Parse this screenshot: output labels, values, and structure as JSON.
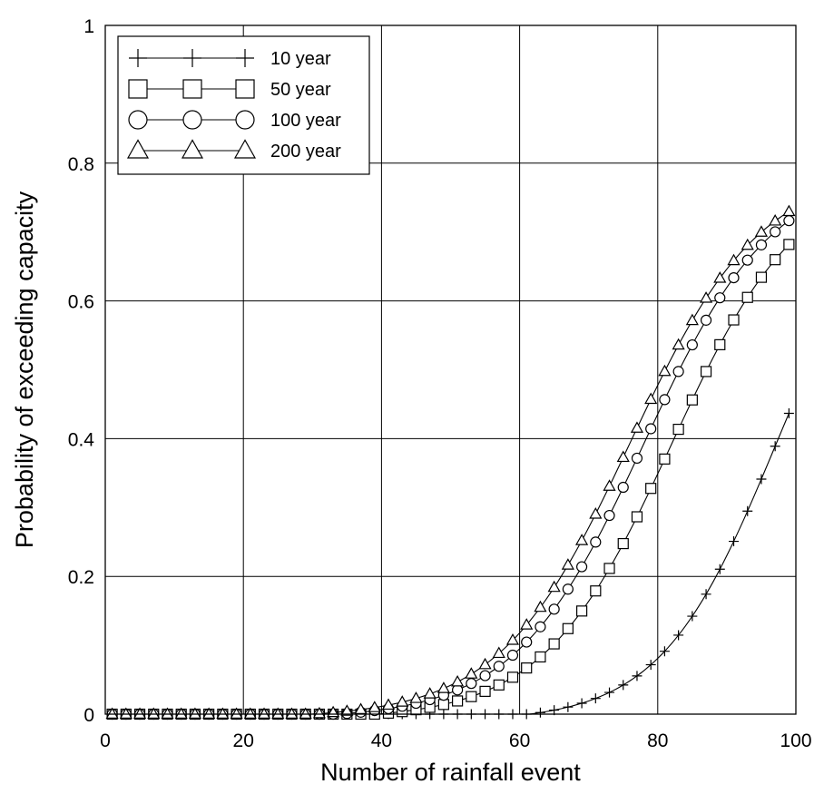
{
  "chart_data": {
    "type": "line",
    "title": "",
    "xlabel": "Number of rainfall event",
    "ylabel": "Probability of exceeding capacity",
    "xlim": [
      0,
      100
    ],
    "ylim": [
      0,
      1
    ],
    "x_ticks": [
      0,
      20,
      40,
      60,
      80,
      100
    ],
    "y_ticks": [
      0,
      0.2,
      0.4,
      0.6,
      0.8,
      1
    ],
    "x_tick_labels": [
      "0",
      "20",
      "40",
      "60",
      "80",
      "100"
    ],
    "y_tick_labels": [
      "0",
      "0.2",
      "0.4",
      "0.6",
      "0.8",
      "1"
    ],
    "grid": true,
    "legend_position": "top-left",
    "marker_every": 2,
    "x": [
      1,
      99
    ],
    "series": [
      {
        "name": "10 year",
        "marker": "plus",
        "logistic": {
          "L": 0.8,
          "x0": 97,
          "k": 0.12,
          "offset": 0.011
        }
      },
      {
        "name": "50 year",
        "marker": "square",
        "logistic": {
          "L": 0.8,
          "x0": 82,
          "k": 0.108,
          "offset": 0.008
        }
      },
      {
        "name": "100 year",
        "marker": "circle",
        "logistic": {
          "L": 0.8,
          "x0": 78,
          "k": 0.107,
          "offset": 0.007
        }
      },
      {
        "name": "200 year",
        "marker": "triangle",
        "logistic": {
          "L": 0.8,
          "x0": 76,
          "k": 0.106,
          "offset": 0.006
        }
      }
    ]
  }
}
